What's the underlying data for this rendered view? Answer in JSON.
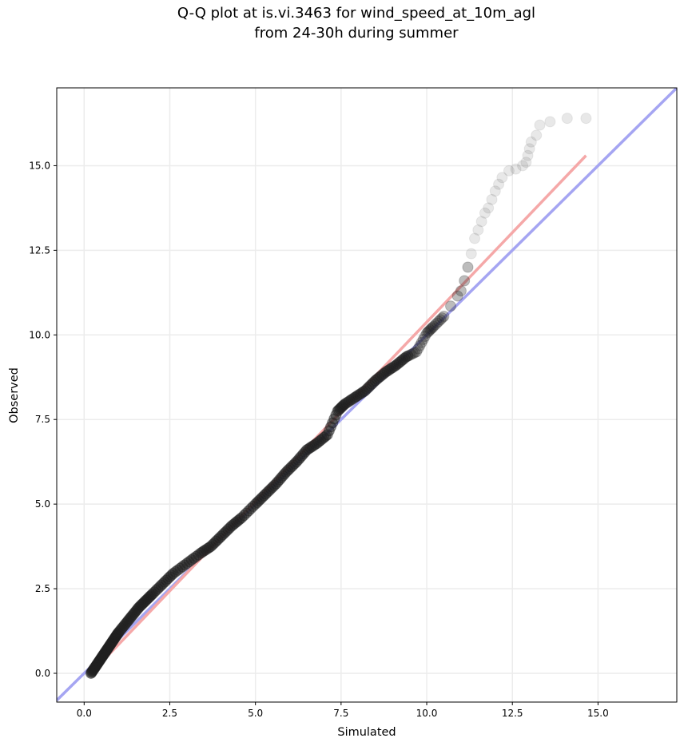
{
  "chart_data": {
    "type": "scatter",
    "title_line1": "Q-Q plot at is.vi.3463 for wind_speed_at_10m_agl",
    "title_line2": "from 24-30h during summer",
    "xlabel": "Simulated",
    "ylabel": "Observed",
    "xlim": [
      -0.8,
      17.3
    ],
    "ylim": [
      -0.85,
      17.3
    ],
    "xticks": [
      0.0,
      2.5,
      5.0,
      7.5,
      10.0,
      12.5,
      15.0
    ],
    "xtick_labels": [
      "0.0",
      "2.5",
      "5.0",
      "7.5",
      "10.0",
      "12.5",
      "15.0"
    ],
    "yticks": [
      0.0,
      2.5,
      5.0,
      7.5,
      10.0,
      12.5,
      15.0
    ],
    "ytick_labels": [
      "0.0",
      "2.5",
      "5.0",
      "7.5",
      "10.0",
      "12.5",
      "15.0"
    ],
    "grid": true,
    "reference_lines": [
      {
        "color": "#a5a5f2",
        "x": [
          -0.8,
          17.3
        ],
        "y": [
          -0.8,
          17.3
        ]
      },
      {
        "color": "#f5a8a8",
        "x": [
          0.2,
          14.65
        ],
        "y": [
          0.0,
          15.3
        ]
      }
    ],
    "marker_color": "#202020",
    "quantiles": {
      "x": [
        0.2,
        0.3,
        0.4,
        0.5,
        0.6,
        0.7,
        0.8,
        0.9,
        1.0,
        1.2,
        1.4,
        1.6,
        1.8,
        2.0,
        2.3,
        2.6,
        3.0,
        3.4,
        3.7,
        4.0,
        4.3,
        4.6,
        5.0,
        5.3,
        5.6,
        5.9,
        6.2,
        6.5,
        6.8,
        7.1,
        7.4,
        7.6,
        7.9,
        8.2,
        8.5,
        8.8,
        9.1,
        9.4,
        9.7,
        10.0,
        10.2,
        10.5,
        10.7,
        10.9,
        11.0,
        11.1,
        11.2,
        11.3,
        11.4,
        11.5,
        11.6,
        11.7,
        11.8,
        11.9,
        12.0,
        12.1,
        12.2,
        12.4,
        12.6,
        12.8,
        12.9,
        12.95,
        13.0,
        13.05,
        13.2,
        13.3,
        13.6,
        14.1,
        14.65
      ],
      "y": [
        0.0,
        0.15,
        0.3,
        0.45,
        0.6,
        0.75,
        0.9,
        1.05,
        1.2,
        1.45,
        1.7,
        1.95,
        2.15,
        2.35,
        2.65,
        2.95,
        3.25,
        3.55,
        3.75,
        4.05,
        4.35,
        4.6,
        5.0,
        5.3,
        5.6,
        5.95,
        6.25,
        6.6,
        6.8,
        7.05,
        7.75,
        7.95,
        8.15,
        8.35,
        8.65,
        8.9,
        9.1,
        9.35,
        9.5,
        10.05,
        10.25,
        10.55,
        10.85,
        11.15,
        11.3,
        11.6,
        12.0,
        12.4,
        12.85,
        13.1,
        13.35,
        13.6,
        13.75,
        14.0,
        14.25,
        14.45,
        14.65,
        14.85,
        14.9,
        15.0,
        15.1,
        15.3,
        15.5,
        15.7,
        15.9,
        16.2,
        16.3,
        16.4,
        16.4
      ]
    }
  }
}
